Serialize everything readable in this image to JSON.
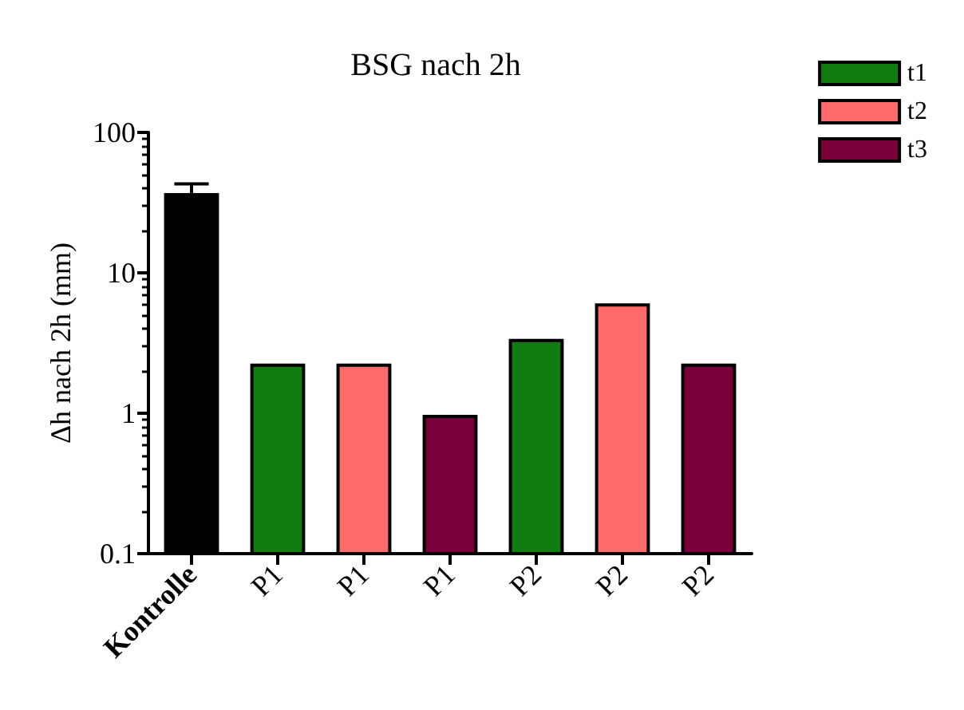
{
  "chart_data": {
    "type": "bar",
    "title": "BSG nach 2h",
    "ylabel": "Δh nach 2h (mm)",
    "categories": [
      "Kontrolle",
      "P1",
      "P1",
      "P1",
      "P2",
      "P2",
      "P2"
    ],
    "series": [
      {
        "color": "#000000",
        "values": [
          36,
          null,
          null,
          null,
          null,
          null,
          null
        ],
        "errors": [
          [
            36,
            43
          ],
          null,
          null,
          null,
          null,
          null,
          null
        ]
      },
      {
        "name": "t1",
        "color": "#117a11",
        "values": [
          null,
          2.2,
          null,
          null,
          3.3,
          null,
          null
        ]
      },
      {
        "name": "t2",
        "color": "#ff6b6b",
        "values": [
          null,
          null,
          2.2,
          null,
          null,
          5.9,
          null
        ]
      },
      {
        "name": "t3",
        "color": "#7a003a",
        "values": [
          null,
          null,
          null,
          0.95,
          null,
          null,
          2.2
        ]
      }
    ],
    "log": "y",
    "ylim": [
      0.1,
      100
    ],
    "yticks": [
      0.1,
      1,
      10,
      100
    ],
    "grid": false,
    "legend": "top right"
  }
}
